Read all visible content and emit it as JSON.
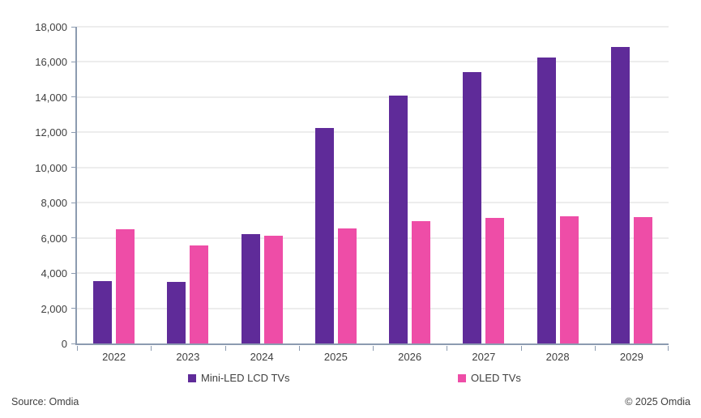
{
  "chart_data": {
    "type": "bar",
    "title": "",
    "categories": [
      "2022",
      "2023",
      "2024",
      "2025",
      "2026",
      "2027",
      "2028",
      "2029"
    ],
    "series": [
      {
        "name": "Mini-LED LCD TVs",
        "color": "#5F2B99",
        "values": [
          3550,
          3500,
          6200,
          12250,
          14100,
          15400,
          16250,
          16850
        ]
      },
      {
        "name": "OLED TVs",
        "color": "#EE4DA7",
        "values": [
          6500,
          5550,
          6100,
          6550,
          6950,
          7150,
          7250,
          7200
        ]
      }
    ],
    "xlabel": "",
    "ylabel": "",
    "ylim": [
      0,
      18000
    ],
    "ytick_step": 2000,
    "ytick_labels": [
      "0",
      "2,000",
      "4,000",
      "6,000",
      "8,000",
      "10,000",
      "12,000",
      "14,000",
      "16,000",
      "18,000"
    ],
    "grid": "horizontal",
    "legend_position": "bottom"
  },
  "style": {
    "axis_color": "#8C9BB0",
    "gridline_color": "#EDEDED",
    "text_color": "#3F3F3F",
    "background_color": "#FFFFFF"
  },
  "footer": {
    "source": "Source: Omdia",
    "copyright": "© 2025 Omdia"
  }
}
